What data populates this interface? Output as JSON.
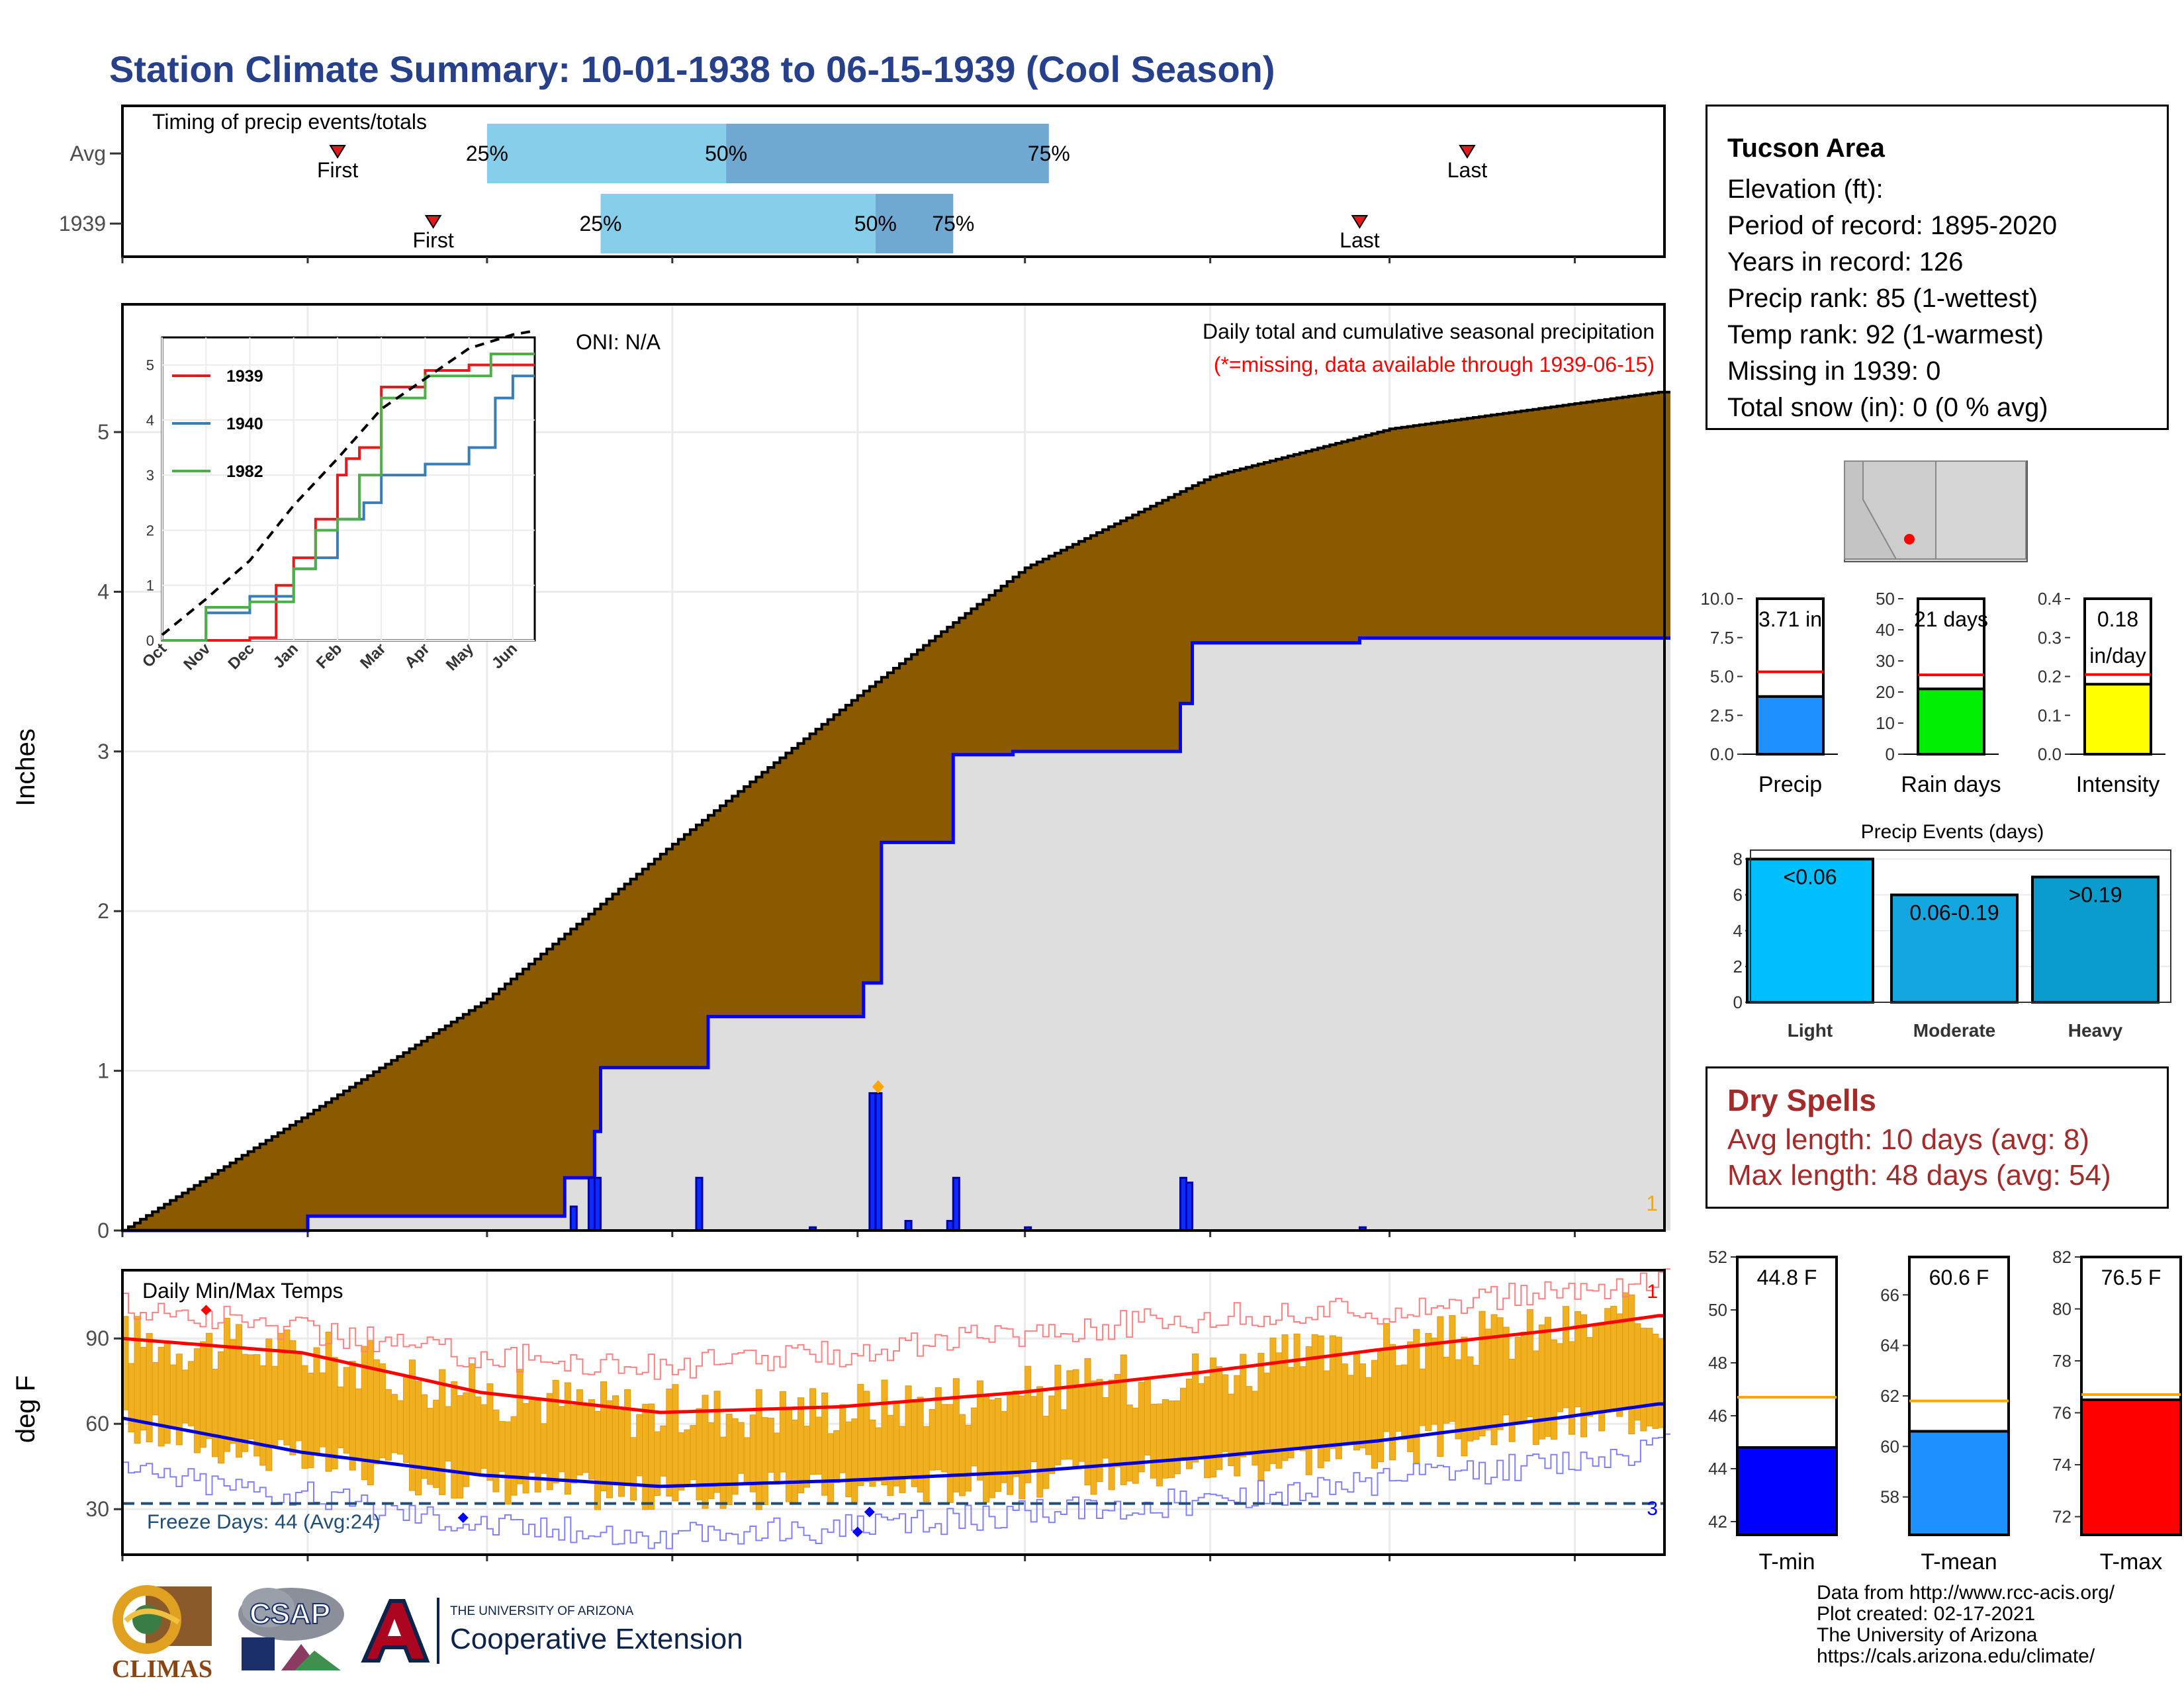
{
  "title": "Station Climate Summary: 10-01-1938 to 06-15-1939 (Cool Season)",
  "timing": {
    "title": "Timing of precip events/totals",
    "rows": [
      {
        "label": "Avg",
        "first_date": "1938-11-06",
        "last_date": "1939-05-14",
        "p25": "1938-12-01",
        "p50": "1939-01-10",
        "p75": "1939-03-05",
        "first_label": "First",
        "last_label": "Last"
      },
      {
        "label": "1939",
        "first_date": "1938-11-22",
        "last_date": "1939-04-26",
        "p25": "1938-12-20",
        "p50": "1939-02-04",
        "p75": "1939-02-17",
        "first_label": "First",
        "last_label": "Last"
      }
    ],
    "pct_labels": [
      "25%",
      "50%",
      "75%"
    ]
  },
  "precip": {
    "ylabel": "Inches",
    "oni": "ONI: N/A",
    "caption": "Daily total and cumulative seasonal precipitation",
    "missing_note": "(*=missing, data available through 1939-06-15)",
    "missing_count": "1",
    "yticks": [
      "0",
      "1",
      "2",
      "3",
      "4",
      "5"
    ]
  },
  "inset": {
    "series": [
      {
        "name": "1939",
        "color": "#e41a1c"
      },
      {
        "name": "1940",
        "color": "#377eb8"
      },
      {
        "name": "1982",
        "color": "#4daf4a"
      }
    ],
    "yticks": [
      "0",
      "1",
      "2",
      "3",
      "4",
      "5"
    ],
    "xticks": [
      "Oct",
      "Nov",
      "Dec",
      "Jan",
      "Feb",
      "Mar",
      "Apr",
      "May",
      "Jun"
    ]
  },
  "temps": {
    "title": "Daily Min/Max Temps",
    "ylabel": "deg F",
    "yticks": [
      "30",
      "60",
      "90"
    ],
    "freeze": "Freeze Days: 44 (Avg:24)",
    "record_high_count": "1",
    "record_low_count": "3"
  },
  "months": [
    "Oct",
    "Nov",
    "Dec",
    "Jan",
    "Feb",
    "Mar",
    "Apr",
    "May",
    "Jun"
  ],
  "station": {
    "name": "Tucson Area",
    "lines": [
      "Elevation (ft):",
      "Period of record: 1895-2020",
      "Years in record: 126",
      "Precip rank: 85 (1-wettest)",
      "Temp rank: 92 (1-warmest)",
      "Missing in 1939: 0",
      "Total snow (in): 0 (0 % avg)"
    ]
  },
  "bars_top": [
    {
      "label": "Precip",
      "value_label": "3.71 in",
      "value": 3.71,
      "avg": 5.3,
      "ymax": 10,
      "ticks": [
        "0.0",
        "2.5",
        "5.0",
        "7.5",
        "10.0"
      ],
      "color": "#1e90ff"
    },
    {
      "label": "Rain days",
      "value_label": "21 days",
      "value": 21,
      "avg": 25.5,
      "ymax": 50,
      "ticks": [
        "0",
        "10",
        "20",
        "30",
        "40",
        "50"
      ],
      "color": "#00ee00"
    },
    {
      "label": "Intensity",
      "value_label": "0.18\nin/day",
      "value": 0.18,
      "avg": 0.205,
      "ymax": 0.4,
      "ticks": [
        "0.0",
        "0.1",
        "0.2",
        "0.3",
        "0.4"
      ],
      "color": "#ffff00"
    }
  ],
  "events": {
    "title": "Precip Events (days)",
    "yticks": [
      "0",
      "2",
      "4",
      "6",
      "8"
    ],
    "bars": [
      {
        "category": "Light",
        "range": "<0.06",
        "value": 8,
        "color": "#00bfff"
      },
      {
        "category": "Moderate",
        "range": "0.06-0.19",
        "value": 6,
        "color": "#14a6df"
      },
      {
        "category": "Heavy",
        "range": ">0.19",
        "value": 7,
        "color": "#0a9ccc"
      }
    ]
  },
  "dry_spells": {
    "title": "Dry Spells",
    "avg": "Avg length: 10 days (avg: 8)",
    "max": "Max length: 48 days (avg: 54)"
  },
  "bars_temp": [
    {
      "label": "T-min",
      "value_label": "44.8 F",
      "value": 44.8,
      "avg": 46.7,
      "ymin": 41.5,
      "ymax": 52,
      "ticks": [
        "42",
        "44",
        "46",
        "48",
        "50",
        "52"
      ],
      "color": "#0000ff"
    },
    {
      "label": "T-mean",
      "value_label": "60.6 F",
      "value": 60.6,
      "avg": 61.8,
      "ymin": 56.5,
      "ymax": 67.5,
      "ticks": [
        "58",
        "60",
        "62",
        "64",
        "66"
      ],
      "color": "#1e90ff"
    },
    {
      "label": "T-max",
      "value_label": "76.5 F",
      "value": 76.5,
      "avg": 76.7,
      "ymin": 71.3,
      "ymax": 82,
      "ticks": [
        "72",
        "74",
        "76",
        "78",
        "80",
        "82"
      ],
      "color": "#ff0000"
    }
  ],
  "credits": [
    "Data from http://www.rcc-acis.org/",
    "Plot created: 02-17-2021",
    "The University of Arizona",
    "https://cals.arizona.edu/climate/"
  ],
  "logos": {
    "climas": "CLIMAS",
    "csap": "CSAP",
    "ua_small": "THE UNIVERSITY OF ARIZONA",
    "ua_big": "Cooperative Extension"
  },
  "chart_data": [
    {
      "type": "area",
      "title": "Daily total and cumulative seasonal precipitation",
      "ylabel": "Inches",
      "ylim": [
        0,
        5.8
      ],
      "series": [
        {
          "name": "average cumulative",
          "x": [
            "1938-10-01",
            "1938-11-01",
            "1938-12-01",
            "1939-01-01",
            "1939-02-01",
            "1939-03-01",
            "1939-04-01",
            "1939-05-01",
            "1939-06-15"
          ],
          "values": [
            0,
            0.73,
            1.45,
            2.42,
            3.35,
            4.15,
            4.72,
            5.02,
            5.25
          ]
        },
        {
          "name": "1939 cumulative",
          "x": [
            "1938-10-01",
            "1938-11-01",
            "1938-12-14",
            "1938-12-19",
            "1938-12-20",
            "1939-01-07",
            "1939-02-02",
            "1939-02-05",
            "1939-02-17",
            "1939-02-27",
            "1939-03-27",
            "1939-03-29",
            "1939-04-26",
            "1939-06-15"
          ],
          "values": [
            0,
            0.09,
            0.33,
            0.62,
            1.02,
            1.34,
            1.55,
            2.43,
            2.98,
            3.0,
            3.3,
            3.68,
            3.71,
            3.71
          ]
        },
        {
          "name": "1939 daily",
          "x": [
            "1938-12-15",
            "1938-12-18",
            "1938-12-19",
            "1939-01-05",
            "1939-01-24",
            "1939-02-03",
            "1939-02-04",
            "1939-02-09",
            "1939-02-16",
            "1939-02-17",
            "1939-03-01",
            "1939-03-27",
            "1939-03-28",
            "1939-04-26"
          ],
          "values": [
            0.15,
            0.33,
            0.33,
            0.33,
            0.02,
            0.86,
            0.86,
            0.06,
            0.06,
            0.33,
            0.02,
            0.33,
            0.3,
            0.02
          ]
        }
      ],
      "oni": "ONI: N/A"
    },
    {
      "type": "line",
      "title": "",
      "xticks": [
        "Oct",
        "Nov",
        "Dec",
        "Jan",
        "Feb",
        "Mar",
        "Apr",
        "May",
        "Jun"
      ],
      "ylim": [
        0,
        5.5
      ],
      "series": [
        {
          "name": "1939",
          "x": [
            0,
            1,
            2,
            2.6,
            3,
            3.5,
            4,
            4.2,
            4.5,
            5,
            6,
            7,
            8,
            8.5
          ],
          "values": [
            0,
            0,
            0.05,
            1.0,
            1.5,
            2.2,
            3.0,
            3.3,
            3.5,
            4.6,
            4.9,
            5.0,
            5.0,
            5.0
          ]
        },
        {
          "name": "1940",
          "x": [
            0,
            1,
            2,
            3,
            3.5,
            4,
            4.6,
            5,
            6,
            7,
            7.6,
            8,
            8.5
          ],
          "values": [
            0,
            0.5,
            0.8,
            1.3,
            1.5,
            2.2,
            2.5,
            3.0,
            3.2,
            3.5,
            4.4,
            4.8,
            4.8
          ]
        },
        {
          "name": "1982",
          "x": [
            0,
            1,
            2,
            3,
            3.5,
            4,
            4.5,
            5,
            6,
            7,
            7.5,
            8,
            8.5
          ],
          "values": [
            0,
            0.6,
            0.7,
            1.3,
            2.0,
            2.2,
            3.0,
            4.4,
            4.8,
            4.8,
            5.2,
            5.2,
            5.2
          ]
        },
        {
          "name": "average",
          "x": [
            0,
            1,
            2,
            3,
            4,
            5,
            6,
            7,
            8,
            8.5
          ],
          "values": [
            0.1,
            0.75,
            1.45,
            2.45,
            3.3,
            4.2,
            4.75,
            5.3,
            5.55,
            5.62
          ]
        }
      ]
    },
    {
      "type": "bar",
      "title": "Daily Min/Max Temps",
      "ylabel": "deg F",
      "ylim": [
        14,
        114
      ],
      "series": [
        {
          "name": "normal high",
          "x": [
            0,
            30,
            60,
            90,
            120,
            150,
            180,
            210,
            240,
            257
          ],
          "values": [
            90,
            85,
            71,
            64,
            66,
            71,
            78,
            86,
            93,
            98
          ]
        },
        {
          "name": "normal low",
          "x": [
            0,
            30,
            60,
            90,
            120,
            150,
            180,
            210,
            240,
            257
          ],
          "values": [
            62,
            50,
            42,
            38,
            40,
            43,
            48,
            54,
            62,
            67
          ]
        },
        {
          "name": "record high",
          "x": [
            0,
            30,
            60,
            90,
            120,
            150,
            180,
            210,
            240,
            257
          ],
          "values": [
            101,
            93,
            84,
            80,
            85,
            92,
            97,
            100,
            106,
            110
          ]
        },
        {
          "name": "record low",
          "x": [
            0,
            30,
            60,
            90,
            120,
            150,
            180,
            210,
            240,
            257
          ],
          "values": [
            44,
            35,
            25,
            20,
            23,
            28,
            33,
            40,
            46,
            52
          ]
        }
      ],
      "freeze_line": 32,
      "freeze_days": "Freeze Days: 44 (Avg:24)"
    },
    {
      "type": "bar",
      "categories": [
        "Precip"
      ],
      "values": [
        3.71
      ],
      "ylim": [
        0,
        10
      ]
    },
    {
      "type": "bar",
      "categories": [
        "Rain days"
      ],
      "values": [
        21
      ],
      "ylim": [
        0,
        50
      ]
    },
    {
      "type": "bar",
      "categories": [
        "Intensity"
      ],
      "values": [
        0.18
      ],
      "ylim": [
        0,
        0.4
      ]
    },
    {
      "type": "bar",
      "title": "Precip Events (days)",
      "categories": [
        "Light",
        "Moderate",
        "Heavy"
      ],
      "values": [
        8,
        6,
        7
      ],
      "ylim": [
        0,
        8.5
      ]
    },
    {
      "type": "bar",
      "categories": [
        "T-min"
      ],
      "values": [
        44.8
      ],
      "ylim": [
        41.5,
        52
      ]
    },
    {
      "type": "bar",
      "categories": [
        "T-mean"
      ],
      "values": [
        60.6
      ],
      "ylim": [
        56.5,
        67.5
      ]
    },
    {
      "type": "bar",
      "categories": [
        "T-max"
      ],
      "values": [
        76.5
      ],
      "ylim": [
        71.3,
        82
      ]
    }
  ]
}
